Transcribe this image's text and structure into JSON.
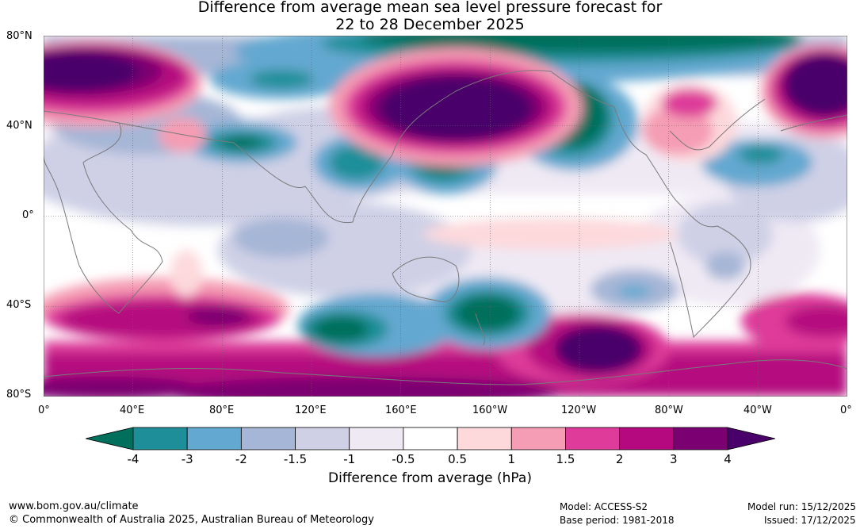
{
  "title_line1": "Difference from average mean sea level pressure forecast for",
  "title_line2": "22 to 28 December 2025",
  "lat_labels": [
    "80°N",
    "40°N",
    "0°",
    "40°S",
    "80°S"
  ],
  "lon_labels": [
    "0°",
    "40°E",
    "80°E",
    "120°E",
    "160°E",
    "160°W",
    "120°W",
    "80°W",
    "40°W",
    "0°"
  ],
  "colorbar": {
    "ticks": [
      "-4",
      "-3",
      "-2",
      "-1.5",
      "-1",
      "-0.5",
      "0.5",
      "1",
      "1.5",
      "2",
      "3",
      "4"
    ],
    "colors": [
      "#00705c",
      "#1e8f99",
      "#63a8d0",
      "#a6b6d6",
      "#cfd0e6",
      "#efe9f4",
      "#ffffff",
      "#fdd9dc",
      "#f59db4",
      "#de3b9a",
      "#b50a7f",
      "#7b0071",
      "#4a006b"
    ],
    "label": "Difference from average (hPa)"
  },
  "footer": {
    "website": "www.bom.gov.au/climate",
    "copyright": "© Commonwealth of Australia 2025, Australian Bureau of Meteorology",
    "model": "Model: ACCESS-S2",
    "base_period": "Base period: 1981-2018",
    "model_run": "Model run: 15/12/2025",
    "issued": "Issued: 17/12/2025"
  }
}
